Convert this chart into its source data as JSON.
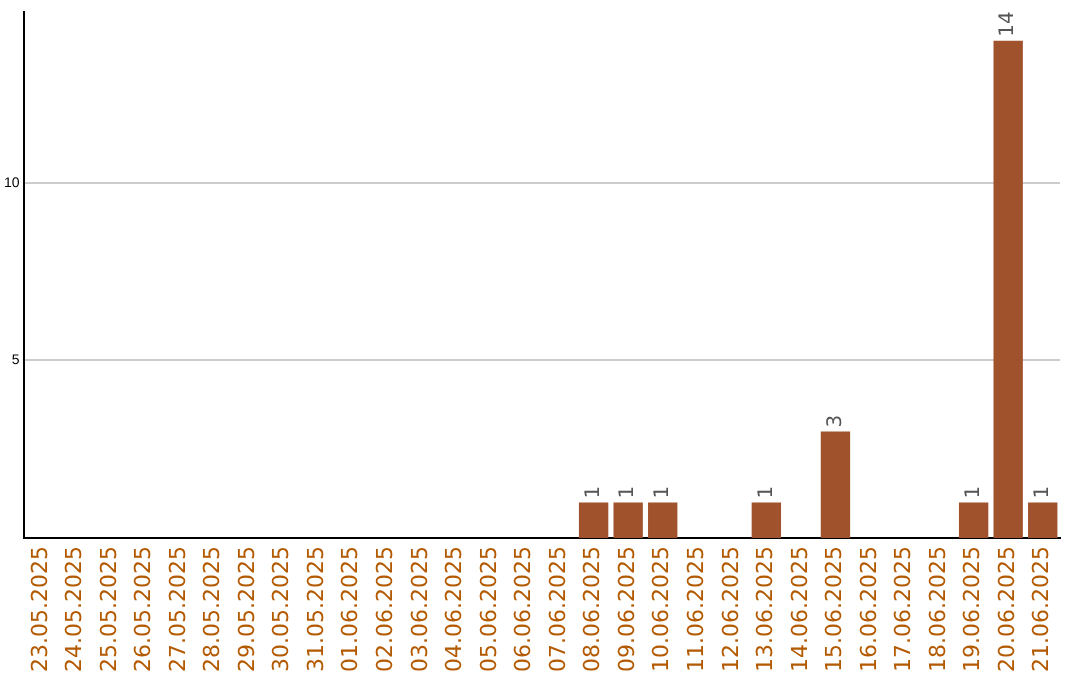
{
  "chart_data": {
    "type": "bar",
    "categories": [
      "23.05.2025",
      "24.05.2025",
      "25.05.2025",
      "26.05.2025",
      "27.05.2025",
      "28.05.2025",
      "29.05.2025",
      "30.05.2025",
      "31.05.2025",
      "01.06.2025",
      "02.06.2025",
      "03.06.2025",
      "04.06.2025",
      "05.06.2025",
      "06.06.2025",
      "07.06.2025",
      "08.06.2025",
      "09.06.2025",
      "10.06.2025",
      "11.06.2025",
      "12.06.2025",
      "13.06.2025",
      "14.06.2025",
      "15.06.2025",
      "16.06.2025",
      "17.06.2025",
      "18.06.2025",
      "19.06.2025",
      "20.06.2025",
      "21.06.2025"
    ],
    "values": [
      0,
      0,
      0,
      0,
      0,
      0,
      0,
      0,
      0,
      0,
      0,
      0,
      0,
      0,
      0,
      0,
      1,
      1,
      1,
      0,
      0,
      1,
      0,
      3,
      0,
      0,
      0,
      1,
      14,
      1
    ],
    "value_labels": [
      null,
      null,
      null,
      null,
      null,
      null,
      null,
      null,
      null,
      null,
      null,
      null,
      null,
      null,
      null,
      null,
      "1",
      "1",
      "1",
      null,
      null,
      "1",
      null,
      "3",
      null,
      null,
      null,
      "1",
      "14",
      "1"
    ],
    "color": "#a0522d",
    "ylim": [
      0,
      14.8
    ],
    "yticks": [
      5,
      10
    ],
    "grid": "y",
    "legend": false
  }
}
